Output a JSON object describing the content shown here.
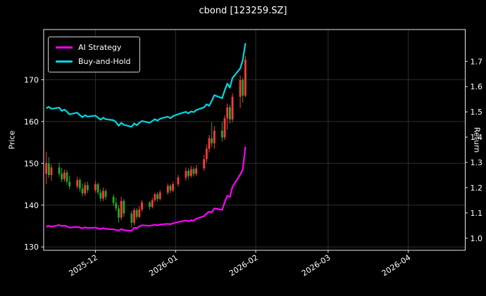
{
  "title": "cbond [123259.SZ]",
  "legend": {
    "items": [
      {
        "label": "AI Strategy",
        "color": "#ff00ff"
      },
      {
        "label": "Buy-and-Hold",
        "color": "#00d8e0"
      }
    ]
  },
  "chart_data": {
    "type": "candlestick+line",
    "title": "cbond [123259.SZ]",
    "grid": true,
    "legend_position": "upper left",
    "x_axis": {
      "start": "2025-11-11",
      "end": "2026-04-23",
      "ticks": [
        {
          "label": "2025-12",
          "date": "2025-12-01"
        },
        {
          "label": "2026-01",
          "date": "2026-01-01"
        },
        {
          "label": "2026-02",
          "date": "2026-02-01"
        },
        {
          "label": "2026-03",
          "date": "2026-03-01"
        },
        {
          "label": "2026-04",
          "date": "2026-04-01"
        }
      ]
    },
    "price_axis": {
      "label": "Price",
      "ticks": [
        130,
        140,
        150,
        160,
        170
      ],
      "min": 129.2,
      "max": 182.0
    },
    "return_axis": {
      "label": "Return",
      "ticks": [
        "1.0",
        "1.1",
        "1.2",
        "1.3",
        "1.4",
        "1.5",
        "1.6",
        "1.7"
      ],
      "min": 0.952,
      "max": 1.826
    },
    "dates": [
      "2025-11-12",
      "2025-11-13",
      "2025-11-14",
      "2025-11-17",
      "2025-11-18",
      "2025-11-19",
      "2025-11-20",
      "2025-11-21",
      "2025-11-24",
      "2025-11-25",
      "2025-11-26",
      "2025-11-27",
      "2025-11-28",
      "2025-12-01",
      "2025-12-02",
      "2025-12-03",
      "2025-12-04",
      "2025-12-05",
      "2025-12-08",
      "2025-12-09",
      "2025-12-10",
      "2025-12-11",
      "2025-12-12",
      "2025-12-15",
      "2025-12-16",
      "2025-12-17",
      "2025-12-18",
      "2025-12-19",
      "2025-12-22",
      "2025-12-23",
      "2025-12-24",
      "2025-12-25",
      "2025-12-26",
      "2025-12-29",
      "2025-12-30",
      "2025-12-31",
      "2026-01-02",
      "2026-01-05",
      "2026-01-06",
      "2026-01-07",
      "2026-01-08",
      "2026-01-09",
      "2026-01-12",
      "2026-01-13",
      "2026-01-14",
      "2026-01-15",
      "2026-01-16",
      "2026-01-19",
      "2026-01-20",
      "2026-01-21",
      "2026-01-22",
      "2026-01-23",
      "2026-01-26",
      "2026-01-27",
      "2026-01-28"
    ],
    "candles": {
      "columns": [
        "open",
        "high",
        "low",
        "close"
      ],
      "up_color": "#ff3b3b",
      "down_color": "#2aa52a",
      "rows": [
        [
          147.5,
          152.8,
          145.0,
          150.0
        ],
        [
          150.0,
          151.5,
          146.5,
          147.2
        ],
        [
          147.2,
          149.8,
          145.8,
          149.0
        ],
        [
          149.0,
          150.2,
          146.8,
          147.5
        ],
        [
          147.5,
          148.9,
          145.5,
          146.2
        ],
        [
          146.2,
          148.5,
          145.6,
          147.8
        ],
        [
          147.8,
          148.4,
          144.9,
          145.6
        ],
        [
          145.6,
          147.0,
          143.8,
          144.5
        ],
        [
          144.5,
          146.8,
          143.9,
          146.0
        ],
        [
          146.0,
          146.5,
          143.2,
          144.0
        ],
        [
          144.0,
          145.2,
          142.1,
          142.8
        ],
        [
          142.8,
          145.5,
          142.2,
          144.8
        ],
        [
          144.8,
          145.6,
          142.9,
          143.6
        ],
        [
          143.6,
          145.8,
          143.0,
          145.0
        ],
        [
          145.0,
          145.4,
          142.4,
          143.0
        ],
        [
          143.0,
          143.8,
          140.9,
          141.6
        ],
        [
          141.6,
          144.2,
          141.0,
          143.4
        ],
        [
          143.4,
          143.9,
          141.3,
          142.0
        ],
        [
          142.0,
          142.6,
          139.8,
          140.5
        ],
        [
          140.5,
          141.8,
          138.6,
          139.2
        ],
        [
          139.2,
          140.0,
          135.8,
          137.0
        ],
        [
          137.0,
          142.0,
          136.4,
          141.0
        ],
        [
          141.0,
          141.5,
          137.2,
          138.0
        ],
        [
          138.0,
          138.6,
          134.6,
          135.8
        ],
        [
          135.8,
          139.4,
          135.2,
          138.8
        ],
        [
          138.8,
          139.3,
          136.6,
          137.2
        ],
        [
          137.2,
          139.8,
          136.9,
          139.0
        ],
        [
          139.0,
          141.2,
          138.4,
          140.6
        ],
        [
          140.6,
          141.0,
          138.9,
          139.6
        ],
        [
          139.6,
          141.8,
          139.2,
          141.2
        ],
        [
          141.2,
          143.0,
          140.7,
          142.6
        ],
        [
          142.6,
          143.1,
          140.9,
          141.5
        ],
        [
          141.5,
          143.6,
          141.1,
          143.0
        ],
        [
          143.0,
          145.2,
          142.5,
          144.6
        ],
        [
          144.6,
          145.1,
          142.9,
          143.5
        ],
        [
          143.5,
          145.6,
          143.1,
          145.0
        ],
        [
          145.0,
          147.2,
          144.4,
          146.6
        ],
        [
          146.6,
          149.0,
          145.9,
          148.2
        ],
        [
          148.2,
          148.8,
          146.2,
          147.0
        ],
        [
          147.0,
          149.4,
          146.5,
          148.6
        ],
        [
          148.6,
          149.1,
          146.8,
          147.5
        ],
        [
          147.5,
          149.6,
          147.0,
          148.8
        ],
        [
          148.8,
          152.0,
          148.2,
          151.0
        ],
        [
          151.0,
          154.5,
          150.2,
          153.5
        ],
        [
          153.5,
          156.8,
          152.6,
          156.0
        ],
        [
          156.0,
          159.8,
          153.9,
          154.8
        ],
        [
          154.8,
          158.9,
          153.5,
          157.8
        ],
        [
          157.8,
          159.9,
          155.2,
          156.2
        ],
        [
          156.2,
          161.5,
          155.6,
          160.8
        ],
        [
          160.8,
          164.3,
          158.1,
          163.4
        ],
        [
          163.4,
          164.0,
          159.5,
          160.5
        ],
        [
          160.5,
          166.8,
          159.8,
          165.9
        ],
        [
          165.9,
          171.0,
          163.2,
          169.9
        ],
        [
          169.9,
          170.5,
          164.5,
          166.2
        ],
        [
          166.2,
          175.7,
          165.8,
          174.8
        ]
      ]
    },
    "series": [
      {
        "name": "AI Strategy",
        "color": "#ff00ff",
        "axis": "return",
        "values": [
          1.045,
          1.049,
          1.046,
          1.052,
          1.048,
          1.05,
          1.046,
          1.042,
          1.045,
          1.042,
          1.039,
          1.043,
          1.04,
          1.042,
          1.039,
          1.036,
          1.04,
          1.037,
          1.035,
          1.033,
          1.029,
          1.036,
          1.032,
          1.029,
          1.041,
          1.039,
          1.047,
          1.051,
          1.049,
          1.051,
          1.053,
          1.051,
          1.054,
          1.057,
          1.055,
          1.059,
          1.064,
          1.07,
          1.067,
          1.071,
          1.069,
          1.077,
          1.087,
          1.097,
          1.105,
          1.102,
          1.118,
          1.112,
          1.142,
          1.168,
          1.163,
          1.203,
          1.252,
          1.272,
          1.362
        ]
      },
      {
        "name": "Buy-and-Hold",
        "color": "#00d8e0",
        "axis": "return",
        "values": [
          1.514,
          1.52,
          1.512,
          1.517,
          1.504,
          1.509,
          1.501,
          1.49,
          1.497,
          1.487,
          1.479,
          1.487,
          1.481,
          1.485,
          1.477,
          1.469,
          1.477,
          1.471,
          1.467,
          1.459,
          1.445,
          1.457,
          1.449,
          1.441,
          1.454,
          1.447,
          1.457,
          1.464,
          1.457,
          1.464,
          1.471,
          1.465,
          1.473,
          1.481,
          1.475,
          1.483,
          1.491,
          1.5,
          1.494,
          1.502,
          1.499,
          1.507,
          1.518,
          1.53,
          1.524,
          1.544,
          1.566,
          1.554,
          1.585,
          1.612,
          1.596,
          1.634,
          1.672,
          1.705,
          1.772
        ]
      }
    ]
  }
}
